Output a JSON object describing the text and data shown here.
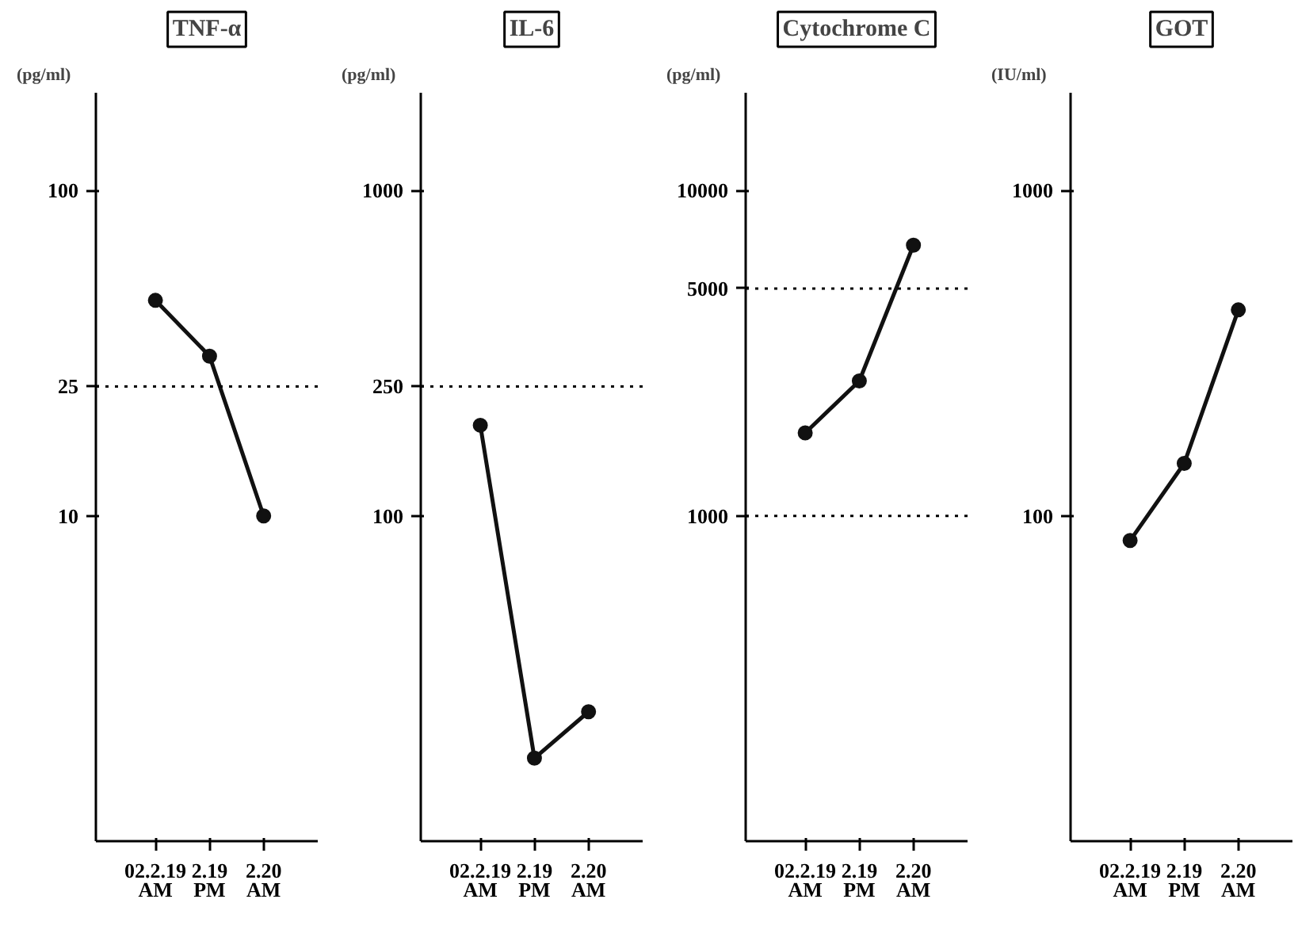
{
  "chart_data": [
    {
      "type": "line",
      "title": "TNF-α",
      "ylabel": "(pg/ml)",
      "categories": [
        "02.2.19\nAM",
        "2.19\nPM",
        "2.20\nAM"
      ],
      "values": [
        46,
        31,
        10
      ],
      "color": "#111111",
      "log": true,
      "ylim": [
        1,
        200
      ],
      "yticks": [
        10,
        25,
        100
      ],
      "ref_lines": [
        {
          "axis": "y",
          "value": 25,
          "line_style": "dotted"
        }
      ],
      "marker": "circle",
      "line_style": "solid"
    },
    {
      "type": "line",
      "title": "IL-6",
      "ylabel": "(pg/ml)",
      "categories": [
        "02.2.19\nAM",
        "2.19\nPM",
        "2.20\nAM"
      ],
      "values": [
        190,
        18,
        25
      ],
      "color": "#111111",
      "log": true,
      "ylim": [
        10,
        2000
      ],
      "yticks": [
        100,
        250,
        1000
      ],
      "ref_lines": [
        {
          "axis": "y",
          "value": 250,
          "line_style": "dotted"
        }
      ],
      "marker": "circle",
      "line_style": "solid"
    },
    {
      "type": "line",
      "title": "Cytochrome C",
      "ylabel": "(pg/ml)",
      "categories": [
        "02.2.19\nAM",
        "2.19\nPM",
        "2.20\nAM"
      ],
      "values": [
        1800,
        2600,
        6800
      ],
      "color": "#111111",
      "log": true,
      "ylim": [
        100,
        20000
      ],
      "yticks": [
        1000,
        5000,
        10000
      ],
      "ref_lines": [
        {
          "axis": "y",
          "value": 5000,
          "line_style": "dotted"
        },
        {
          "axis": "y",
          "value": 1000,
          "line_style": "dotted"
        }
      ],
      "marker": "circle",
      "line_style": "solid"
    },
    {
      "type": "line",
      "title": "GOT",
      "ylabel": "(IU/ml)",
      "categories": [
        "02.2.19\nAM",
        "2.19\nPM",
        "2.20\nAM"
      ],
      "values": [
        84,
        145,
        430
      ],
      "color": "#111111",
      "log": true,
      "ylim": [
        10,
        2000
      ],
      "yticks": [
        100,
        1000
      ],
      "marker": "circle",
      "line_style": "solid"
    }
  ]
}
